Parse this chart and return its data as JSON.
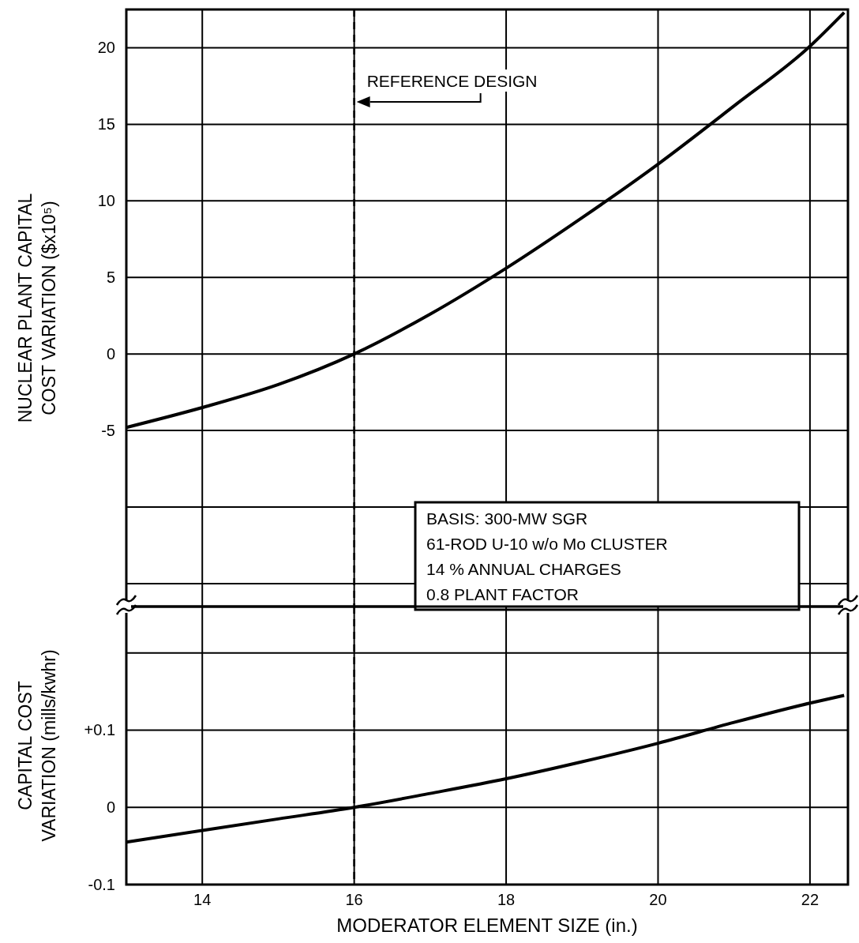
{
  "chart_data": [
    {
      "type": "line",
      "xlim": [
        13,
        22.5
      ],
      "xticks": [
        14,
        16,
        18,
        20,
        22
      ],
      "ylim": [
        -16.5,
        22.5
      ],
      "yticks": [
        {
          "value": -15,
          "label": null
        },
        {
          "value": -10,
          "label": null
        },
        -5,
        0,
        5,
        10,
        15,
        20
      ],
      "tick_labels": "y",
      "grid": true,
      "ylabel": "NUCLEAR PLANT CAPITAL\nCOST VARIATION ($x10⁵)",
      "x": [
        13,
        14,
        15,
        16,
        17,
        18,
        19,
        20,
        21,
        22,
        22.45
      ],
      "series": [
        {
          "color": "#000000",
          "values": [
            -4.8,
            -3.5,
            -2.0,
            0,
            2.6,
            5.6,
            8.9,
            12.4,
            16.2,
            20.1,
            22.3
          ]
        }
      ],
      "ref_lines": [
        {
          "axis": "x",
          "value": 16,
          "label": "REFERENCE DESIGN",
          "line_style": "dashed"
        }
      ],
      "annotations": [
        "BASIS: 300-MW SGR",
        "61-ROD U-10 w/o Mo CLUSTER",
        "14 % ANNUAL CHARGES",
        "0.8 PLANT FACTOR"
      ]
    },
    {
      "type": "line",
      "xlim": [
        13,
        22.5
      ],
      "xticks": [
        14,
        16,
        18,
        20,
        22
      ],
      "ylim": [
        -0.1,
        0.26
      ],
      "yticks": [
        {
          "value": -0.1,
          "label": "-0.1"
        },
        0,
        {
          "value": 0.1,
          "label": "+0.1"
        },
        {
          "value": 0.2,
          "label": null
        }
      ],
      "grid": true,
      "ylabel": "CAPITAL COST\nVARIATION (mills/kwhr)",
      "xlabel": "MODERATOR ELEMENT SIZE (in.)",
      "x": [
        13,
        14,
        15,
        16,
        17,
        18,
        19,
        20,
        21,
        22,
        22.45
      ],
      "series": [
        {
          "color": "#000000",
          "values": [
            -0.045,
            -0.03,
            -0.015,
            0,
            0.018,
            0.037,
            0.059,
            0.083,
            0.11,
            0.135,
            0.145
          ]
        }
      ],
      "ref_lines": [
        {
          "axis": "x",
          "value": 16,
          "line_style": "dashed"
        }
      ]
    }
  ]
}
